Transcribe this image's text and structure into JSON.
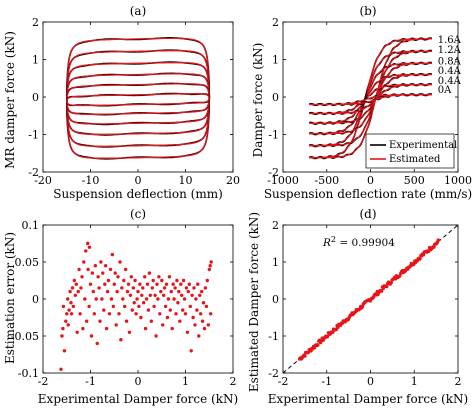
{
  "chart_data": [
    {
      "panel": "(a)",
      "type": "line",
      "xlabel": "Suspension deflection (mm)",
      "ylabel": "MR damper force (kN)",
      "xlim": [
        -20,
        20
      ],
      "ylim": [
        -2,
        2
      ],
      "xticks": [
        -20,
        -10,
        0,
        10,
        20
      ],
      "yticks": [
        -2,
        -1,
        0,
        1,
        2
      ],
      "grid": false,
      "colors": {
        "Experimental": "#000000",
        "Estimated": "#e8141a"
      },
      "amplitude_mm": 15,
      "loops": [
        {
          "upper_kN": 1.55,
          "lower_kN": -1.62
        },
        {
          "upper_kN": 1.22,
          "lower_kN": -1.3
        },
        {
          "upper_kN": 0.9,
          "lower_kN": -0.98
        },
        {
          "upper_kN": 0.6,
          "lower_kN": -0.7
        },
        {
          "upper_kN": 0.33,
          "lower_kN": -0.44
        },
        {
          "upper_kN": 0.06,
          "lower_kN": -0.2
        }
      ]
    },
    {
      "panel": "(b)",
      "type": "line",
      "xlabel": "Suspension deflection rate (mm/s)",
      "ylabel": "Damper force (kN)",
      "xlim": [
        -1000,
        1000
      ],
      "ylim": [
        -2,
        2
      ],
      "xticks": [
        -1000,
        -500,
        0,
        500,
        1000
      ],
      "yticks": [
        -2,
        -1,
        0,
        1,
        2
      ],
      "grid": false,
      "legend": {
        "position": "bottom-right",
        "entries": [
          "Experimental",
          "Estimated"
        ]
      },
      "colors": {
        "Experimental": "#000000",
        "Estimated": "#e8141a"
      },
      "curve_labels": [
        "1.6A",
        "1.2A",
        "0.8A",
        "0.4A",
        "0.4A",
        "0A"
      ],
      "label_y_kN": [
        1.55,
        1.28,
        0.98,
        0.72,
        0.45,
        0.22
      ],
      "velocity_range_mm_s": [
        -700,
        700
      ],
      "loops": [
        {
          "max_kN": 1.55,
          "min_kN": -1.62
        },
        {
          "max_kN": 1.22,
          "min_kN": -1.3
        },
        {
          "max_kN": 0.9,
          "min_kN": -0.98
        },
        {
          "max_kN": 0.6,
          "min_kN": -0.7
        },
        {
          "max_kN": 0.33,
          "min_kN": -0.44
        },
        {
          "max_kN": 0.06,
          "min_kN": -0.2
        }
      ]
    },
    {
      "panel": "(c)",
      "type": "scatter",
      "xlabel": "Experimental Damper force (kN)",
      "ylabel": "Estimation error (kN)",
      "xlim": [
        -2,
        2
      ],
      "ylim": [
        -0.1,
        0.1
      ],
      "xticks": [
        -2,
        -1,
        0,
        1,
        2
      ],
      "yticks": [
        -0.1,
        -0.05,
        0,
        0.05,
        0.1
      ],
      "yticklabels": [
        "-0.1",
        "-0.05",
        "0",
        "0.05",
        "0.1"
      ],
      "grid": false,
      "color": "#e8141a",
      "points": [
        [
          -1.62,
          -0.095
        ],
        [
          -1.6,
          -0.05
        ],
        [
          -1.58,
          -0.04
        ],
        [
          -1.57,
          -0.01
        ],
        [
          -1.55,
          -0.07
        ],
        [
          -1.52,
          -0.03
        ],
        [
          -1.5,
          -0.02
        ],
        [
          -1.48,
          0.0
        ],
        [
          -1.47,
          -0.035
        ],
        [
          -1.45,
          -0.015
        ],
        [
          -1.43,
          0.01
        ],
        [
          -1.41,
          -0.005
        ],
        [
          -1.4,
          -0.02
        ],
        [
          -1.38,
          0.015
        ],
        [
          -1.36,
          -0.01
        ],
        [
          -1.34,
          0.025
        ],
        [
          -1.32,
          0.005
        ],
        [
          -1.3,
          0.02
        ],
        [
          -1.28,
          -0.045
        ],
        [
          -1.26,
          0.01
        ],
        [
          -1.24,
          0.04
        ],
        [
          -1.22,
          -0.02
        ],
        [
          -1.2,
          0.015
        ],
        [
          -1.18,
          0.03
        ],
        [
          -1.16,
          -0.04
        ],
        [
          -1.14,
          0.05
        ],
        [
          -1.12,
          0.0
        ],
        [
          -1.1,
          0.065
        ],
        [
          -1.08,
          -0.03
        ],
        [
          -1.06,
          0.075
        ],
        [
          -1.05,
          0.04
        ],
        [
          -1.03,
          -0.01
        ],
        [
          -1.02,
          0.07
        ],
        [
          -1.0,
          0.02
        ],
        [
          -0.98,
          -0.05
        ],
        [
          -0.96,
          0.035
        ],
        [
          -0.94,
          0.01
        ],
        [
          -0.92,
          -0.02
        ],
        [
          -0.9,
          0.045
        ],
        [
          -0.88,
          0.0
        ],
        [
          -0.86,
          -0.06
        ],
        [
          -0.84,
          0.03
        ],
        [
          -0.82,
          0.015
        ],
        [
          -0.8,
          -0.03
        ],
        [
          -0.78,
          0.05
        ],
        [
          -0.76,
          0.0
        ],
        [
          -0.74,
          0.035
        ],
        [
          -0.72,
          -0.015
        ],
        [
          -0.7,
          0.02
        ],
        [
          -0.68,
          0.045
        ],
        [
          -0.66,
          -0.04
        ],
        [
          -0.64,
          0.01
        ],
        [
          -0.62,
          0.025
        ],
        [
          -0.6,
          -0.02
        ],
        [
          -0.58,
          0.04
        ],
        [
          -0.56,
          0.0
        ],
        [
          -0.54,
          0.06
        ],
        [
          -0.52,
          -0.01
        ],
        [
          -0.5,
          0.02
        ],
        [
          -0.48,
          0.035
        ],
        [
          -0.46,
          -0.035
        ],
        [
          -0.44,
          0.01
        ],
        [
          -0.42,
          0.03
        ],
        [
          -0.4,
          -0.02
        ],
        [
          -0.38,
          0.05
        ],
        [
          -0.36,
          -0.055
        ],
        [
          -0.34,
          0.015
        ],
        [
          -0.32,
          0.0
        ],
        [
          -0.3,
          0.025
        ],
        [
          -0.28,
          -0.01
        ],
        [
          -0.26,
          0.04
        ],
        [
          -0.24,
          -0.03
        ],
        [
          -0.22,
          0.01
        ],
        [
          -0.2,
          0.02
        ],
        [
          -0.18,
          -0.045
        ],
        [
          -0.16,
          0.005
        ],
        [
          -0.14,
          0.03
        ],
        [
          -0.12,
          -0.015
        ],
        [
          -0.1,
          0.015
        ],
        [
          -0.08,
          -0.005
        ],
        [
          -0.06,
          0.025
        ],
        [
          -0.04,
          -0.02
        ],
        [
          -0.02,
          0.0
        ],
        [
          0.0,
          0.01
        ],
        [
          0.02,
          -0.01
        ],
        [
          0.04,
          0.02
        ],
        [
          0.06,
          -0.025
        ],
        [
          0.08,
          0.005
        ],
        [
          0.1,
          0.015
        ],
        [
          0.12,
          -0.005
        ],
        [
          0.14,
          0.03
        ],
        [
          0.16,
          -0.04
        ],
        [
          0.18,
          0.0
        ],
        [
          0.2,
          0.02
        ],
        [
          0.22,
          -0.015
        ],
        [
          0.24,
          0.035
        ],
        [
          0.26,
          0.005
        ],
        [
          0.28,
          -0.03
        ],
        [
          0.3,
          0.015
        ],
        [
          0.32,
          0.025
        ],
        [
          0.34,
          -0.01
        ],
        [
          0.36,
          0.005
        ],
        [
          0.38,
          -0.05
        ],
        [
          0.4,
          0.02
        ],
        [
          0.42,
          0.0
        ],
        [
          0.44,
          0.03
        ],
        [
          0.46,
          -0.02
        ],
        [
          0.48,
          0.01
        ],
        [
          0.5,
          0.025
        ],
        [
          0.52,
          -0.035
        ],
        [
          0.54,
          0.005
        ],
        [
          0.56,
          0.015
        ],
        [
          0.58,
          -0.01
        ],
        [
          0.6,
          0.02
        ],
        [
          0.62,
          -0.025
        ],
        [
          0.64,
          0.0
        ],
        [
          0.66,
          0.03
        ],
        [
          0.68,
          -0.015
        ],
        [
          0.7,
          0.01
        ],
        [
          0.72,
          -0.04
        ],
        [
          0.74,
          0.02
        ],
        [
          0.76,
          0.0
        ],
        [
          0.78,
          0.015
        ],
        [
          0.8,
          -0.02
        ],
        [
          0.82,
          0.025
        ],
        [
          0.84,
          -0.005
        ],
        [
          0.86,
          0.01
        ],
        [
          0.88,
          -0.03
        ],
        [
          0.9,
          0.02
        ],
        [
          0.92,
          0.005
        ],
        [
          0.94,
          -0.015
        ],
        [
          0.96,
          0.025
        ],
        [
          0.98,
          0.0
        ],
        [
          1.0,
          -0.02
        ],
        [
          1.02,
          0.015
        ],
        [
          1.04,
          -0.045
        ],
        [
          1.06,
          0.01
        ],
        [
          1.08,
          0.02
        ],
        [
          1.1,
          -0.01
        ],
        [
          1.12,
          -0.07
        ],
        [
          1.14,
          0.005
        ],
        [
          1.16,
          -0.025
        ],
        [
          1.18,
          0.015
        ],
        [
          1.2,
          -0.035
        ],
        [
          1.22,
          0.0
        ],
        [
          1.24,
          -0.015
        ],
        [
          1.26,
          0.02
        ],
        [
          1.28,
          -0.05
        ],
        [
          1.3,
          0.005
        ],
        [
          1.32,
          -0.02
        ],
        [
          1.34,
          0.01
        ],
        [
          1.36,
          -0.03
        ],
        [
          1.38,
          -0.005
        ],
        [
          1.4,
          -0.04
        ],
        [
          1.42,
          0.015
        ],
        [
          1.44,
          -0.01
        ],
        [
          1.46,
          0.025
        ],
        [
          1.48,
          -0.035
        ],
        [
          1.5,
          0.04
        ],
        [
          1.52,
          0.045
        ],
        [
          1.53,
          -0.02
        ],
        [
          1.54,
          0.05
        ]
      ]
    },
    {
      "panel": "(d)",
      "type": "scatter",
      "xlabel": "Experimental Damper force (kN)",
      "ylabel": "Estimated Damper force (kN)",
      "xlim": [
        -2,
        2
      ],
      "ylim": [
        -2,
        2
      ],
      "xticks": [
        -2,
        -1,
        0,
        1,
        2
      ],
      "yticks": [
        -2,
        -1,
        0,
        1,
        2
      ],
      "grid": false,
      "annotation": "R² = 0.99904",
      "color": "#e8141a",
      "reference_line": "y = x (dashed black)",
      "point_x_range": [
        -1.62,
        1.55
      ],
      "point_count": 160
    }
  ],
  "panel_titles": [
    "(a)",
    "(b)",
    "(c)",
    "(d)"
  ],
  "legend": {
    "experimental": "Experimental",
    "estimated": "Estimated"
  },
  "annotation_r2_label": "R",
  "annotation_r2_value": " = 0.99904"
}
